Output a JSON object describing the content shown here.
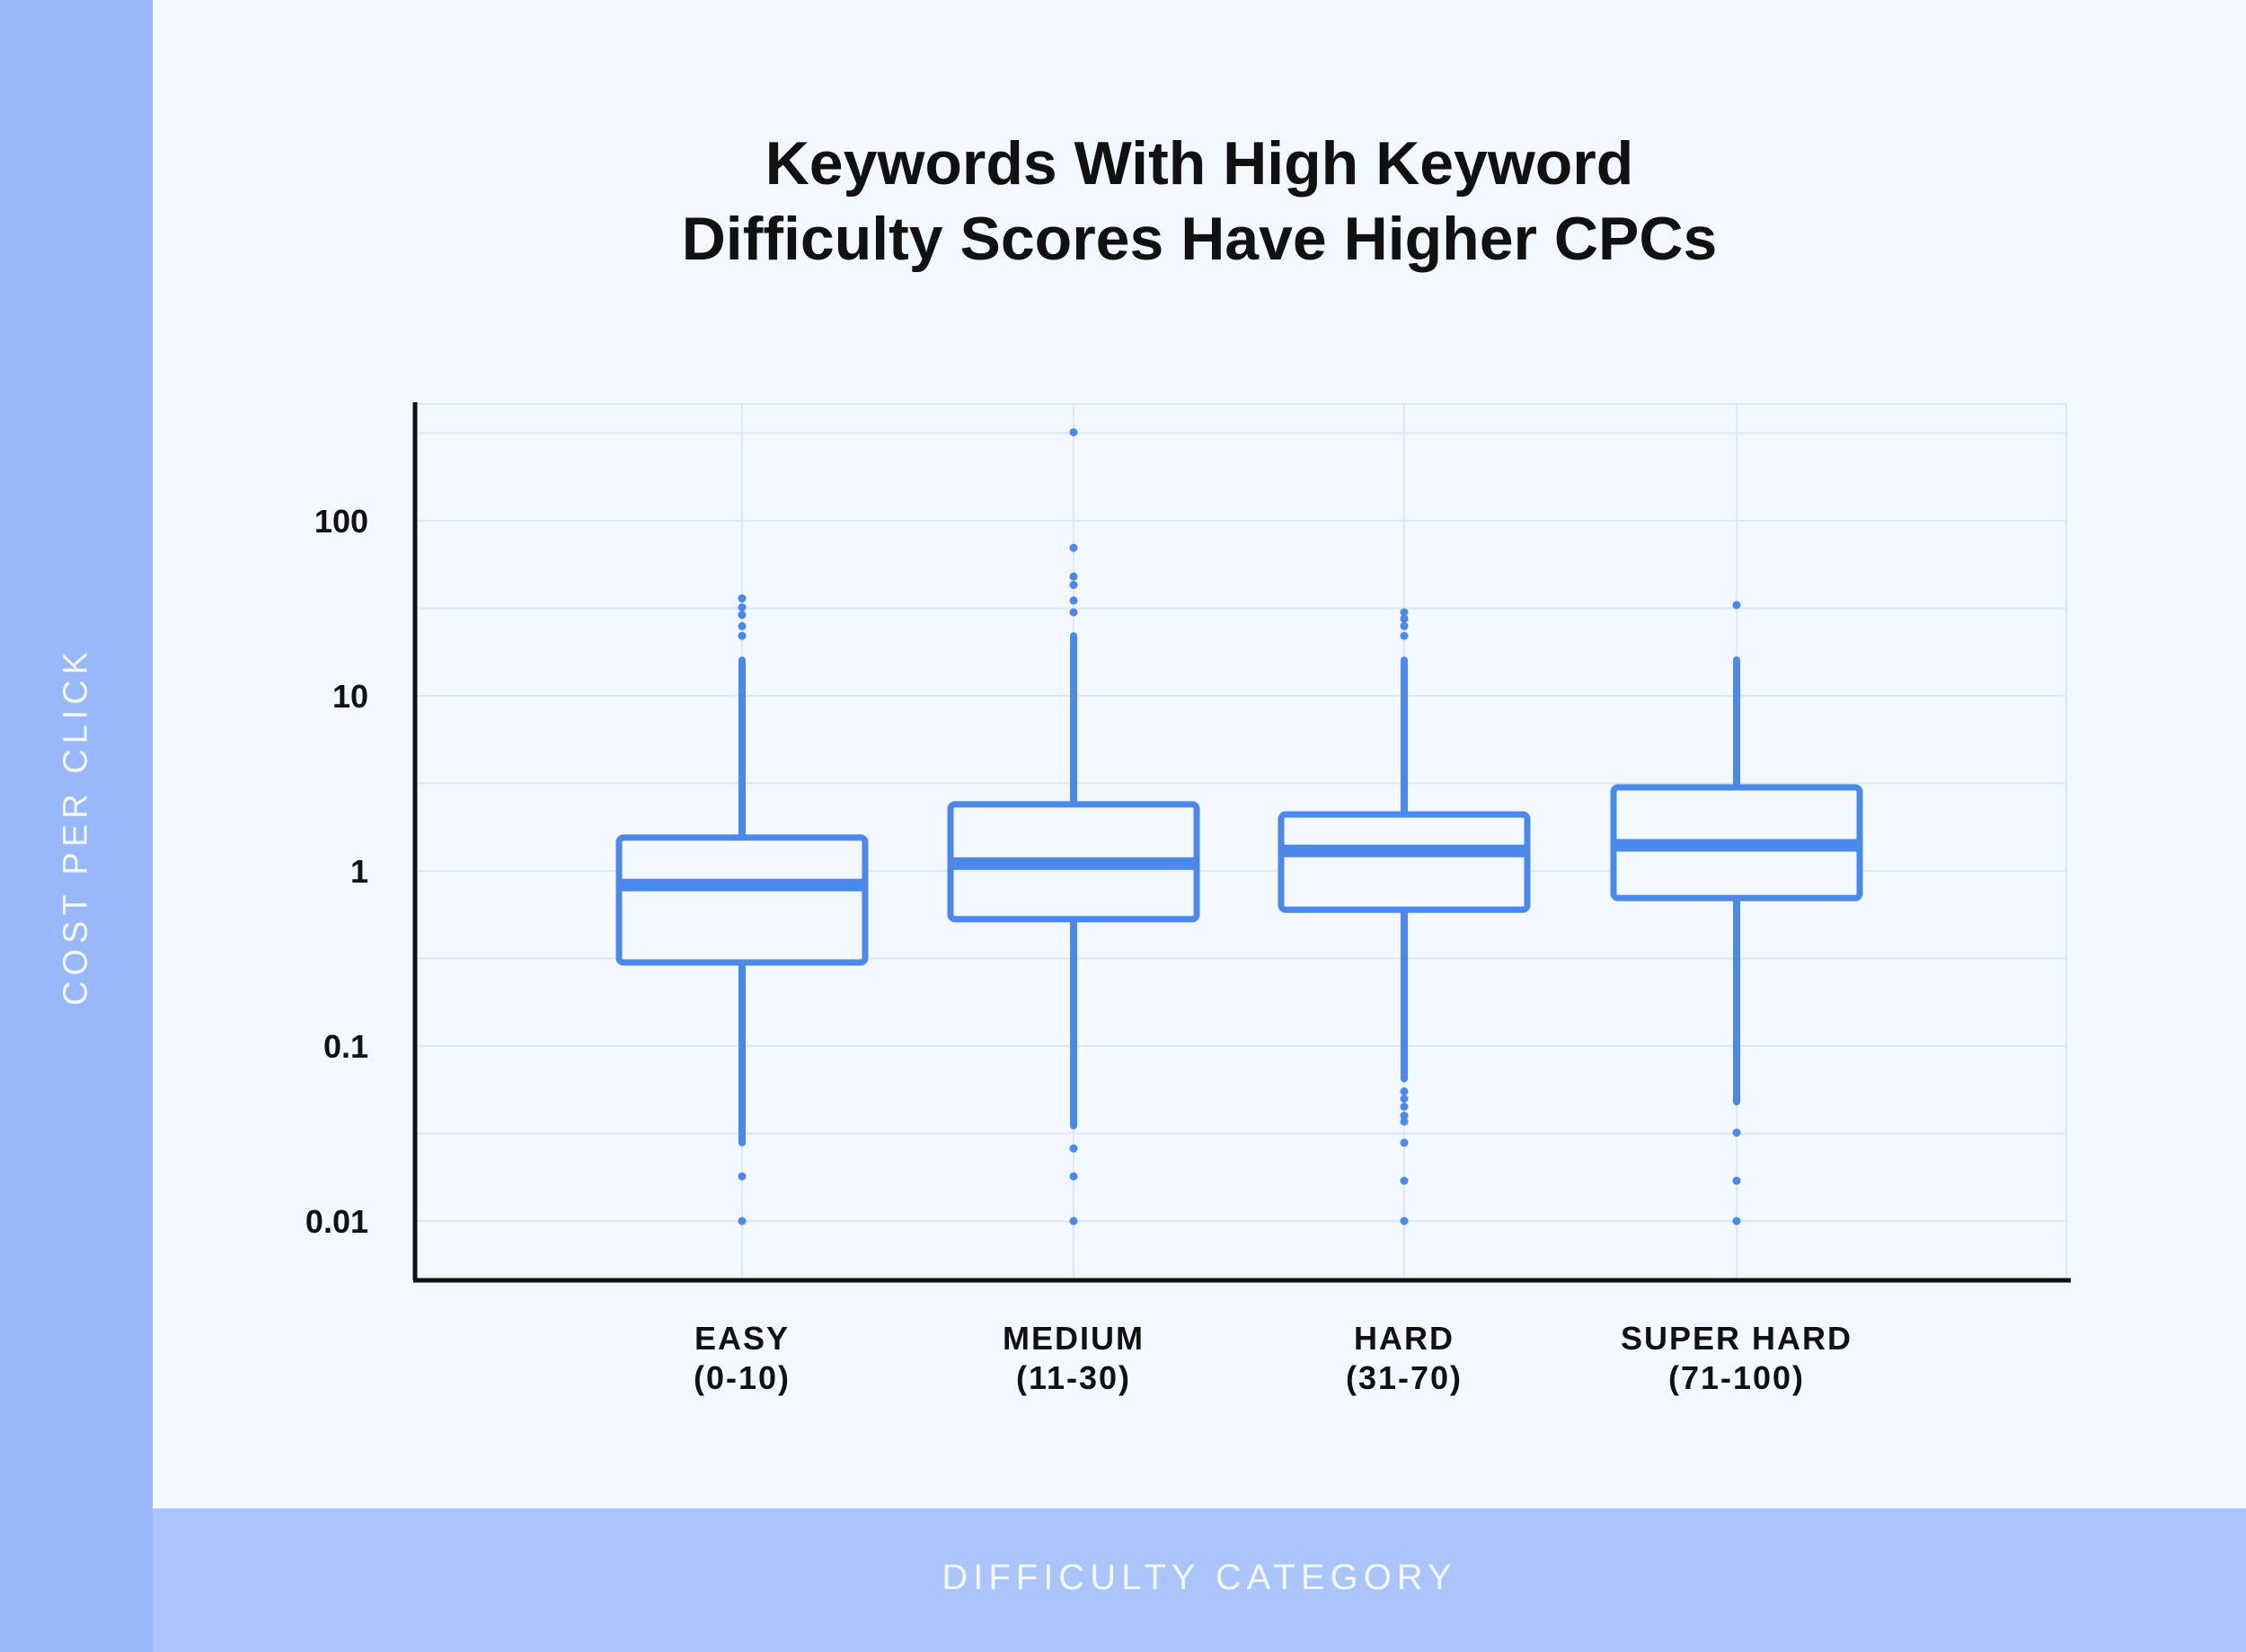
{
  "chart_data": {
    "type": "boxplot",
    "title": [
      "Keywords With High Keyword",
      "Difficulty Scores Have Higher CPCs"
    ],
    "xlabel": "DIFFICULTY CATEGORY",
    "ylabel": "COST PER CLICK",
    "yscale": "log",
    "ylim": [
      0.005,
      500
    ],
    "yticks": [
      {
        "value": 100,
        "label": "100"
      },
      {
        "value": 10,
        "label": "10"
      },
      {
        "value": 1,
        "label": "1"
      },
      {
        "value": 0.1,
        "label": "0.1"
      },
      {
        "value": 0.01,
        "label": "0.01"
      }
    ],
    "grid": true,
    "color": "#4a88ec",
    "categories": [
      {
        "label": [
          "EASY",
          "(0-10)"
        ],
        "q1": 0.3,
        "median": 0.83,
        "q3": 1.55,
        "whisker_low": 0.028,
        "whisker_high": 16,
        "outliers": [
          0.018,
          0.01,
          22,
          25,
          29,
          32,
          36
        ]
      },
      {
        "label": [
          "MEDIUM",
          "(11-30)"
        ],
        "q1": 0.53,
        "median": 1.1,
        "q3": 2.4,
        "whisker_low": 0.035,
        "whisker_high": 22,
        "outliers": [
          0.026,
          0.018,
          0.01,
          30,
          35,
          43,
          48,
          70,
          320
        ]
      },
      {
        "label": [
          "HARD",
          "(31-70)"
        ],
        "q1": 0.6,
        "median": 1.3,
        "q3": 2.1,
        "whisker_low": 0.065,
        "whisker_high": 16,
        "outliers": [
          0.055,
          0.05,
          0.045,
          0.04,
          0.037,
          0.028,
          0.017,
          0.01,
          22,
          25,
          27.5,
          30
        ]
      },
      {
        "label": [
          "SUPER HARD",
          "(71-100)"
        ],
        "q1": 0.7,
        "median": 1.4,
        "q3": 3.0,
        "whisker_low": 0.048,
        "whisker_high": 16,
        "outliers": [
          0.032,
          0.017,
          0.01,
          33
        ]
      }
    ]
  }
}
